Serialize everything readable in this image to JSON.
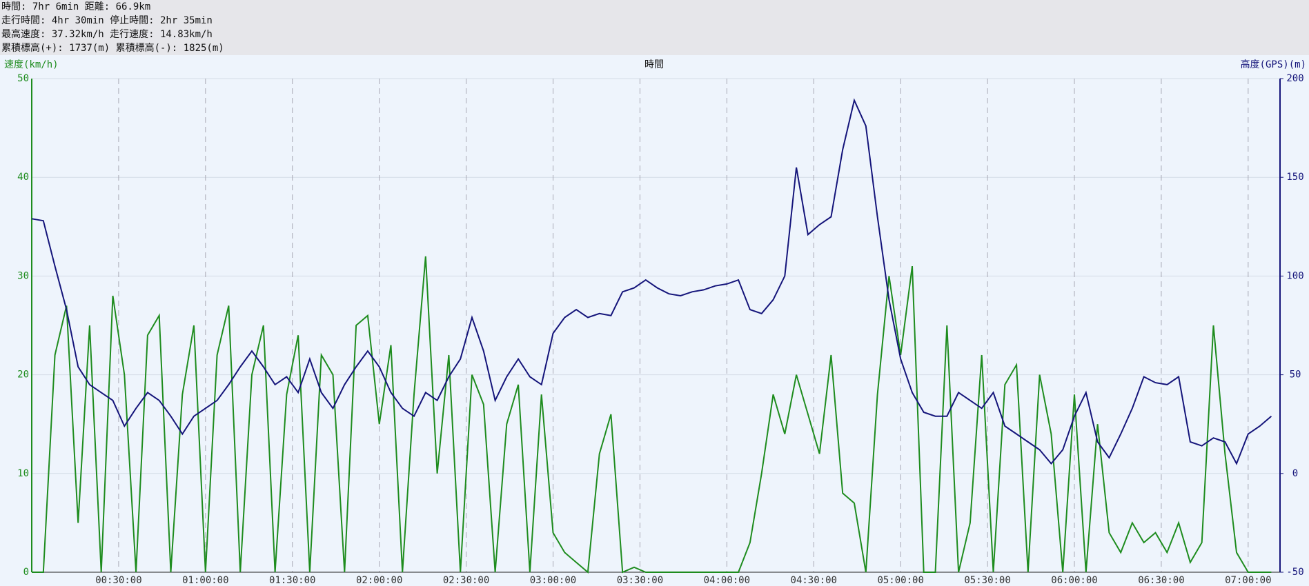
{
  "header": {
    "lines": [
      "時間: 7hr 6min 距離: 66.9km",
      "走行時間: 4hr 30min 停止時間: 2hr 35min",
      "最高速度: 37.32km/h 走行速度: 14.83km/h",
      "累積標高(+): 1737(m) 累積標高(-): 1825(m)"
    ]
  },
  "chart_data": {
    "type": "line",
    "xlabel": "時間",
    "ylabel": "速度(km/h)",
    "y2label": "高度(GPS)(m)",
    "x": [
      0,
      4,
      8,
      12,
      16,
      20,
      24,
      28,
      32,
      36,
      40,
      44,
      48,
      52,
      56,
      60,
      64,
      68,
      72,
      76,
      80,
      84,
      88,
      92,
      96,
      100,
      104,
      108,
      112,
      116,
      120,
      124,
      128,
      132,
      136,
      140,
      144,
      148,
      152,
      156,
      160,
      164,
      168,
      172,
      176,
      180,
      184,
      188,
      192,
      196,
      200,
      204,
      208,
      212,
      216,
      220,
      224,
      228,
      232,
      236,
      240,
      244,
      248,
      252,
      256,
      260,
      264,
      268,
      272,
      276,
      280,
      284,
      288,
      292,
      296,
      300,
      304,
      308,
      312,
      316,
      320,
      324,
      328,
      332,
      336,
      340,
      344,
      348,
      352,
      356,
      360,
      364,
      368,
      372,
      376,
      380,
      384,
      388,
      392,
      396,
      400,
      404,
      408,
      412,
      416,
      420,
      424,
      428
    ],
    "xlim": [
      0,
      431
    ],
    "xticks": [
      {
        "value": 30,
        "label": "00:30:00"
      },
      {
        "value": 60,
        "label": "01:00:00"
      },
      {
        "value": 90,
        "label": "01:30:00"
      },
      {
        "value": 120,
        "label": "02:00:00"
      },
      {
        "value": 150,
        "label": "02:30:00"
      },
      {
        "value": 180,
        "label": "03:00:00"
      },
      {
        "value": 210,
        "label": "03:30:00"
      },
      {
        "value": 240,
        "label": "04:00:00"
      },
      {
        "value": 270,
        "label": "04:30:00"
      },
      {
        "value": 300,
        "label": "05:00:00"
      },
      {
        "value": 330,
        "label": "05:30:00"
      },
      {
        "value": 360,
        "label": "06:00:00"
      },
      {
        "value": 390,
        "label": "06:30:00"
      },
      {
        "value": 420,
        "label": "07:00:00"
      }
    ],
    "ylim": [
      0,
      50
    ],
    "yticks": [
      0,
      10,
      20,
      30,
      40,
      50
    ],
    "y2lim": [
      -50,
      200
    ],
    "y2ticks": [
      -50,
      0,
      50,
      100,
      150,
      200
    ],
    "grid": true,
    "series": [
      {
        "name": "速度",
        "color": "#1e8c1e",
        "axis": "y",
        "values": [
          0,
          0,
          22,
          27,
          5,
          25,
          0,
          28,
          20,
          0,
          24,
          26,
          0,
          18,
          25,
          0,
          22,
          27,
          0,
          20,
          25,
          0,
          18,
          24,
          0,
          22,
          20,
          0,
          25,
          26,
          15,
          23,
          0,
          18,
          32,
          10,
          22,
          0,
          20,
          17,
          0,
          15,
          19,
          0,
          18,
          4,
          2,
          1,
          0,
          12,
          16,
          0,
          0.5,
          0,
          0,
          0,
          0,
          0,
          0,
          0,
          0,
          0,
          3,
          10,
          18,
          14,
          20,
          16,
          12,
          22,
          8,
          7,
          0,
          18,
          30,
          22,
          31,
          0,
          0,
          25,
          0,
          5,
          22,
          0,
          19,
          21,
          0,
          20,
          14,
          0,
          18,
          0,
          15,
          4,
          2,
          5,
          3,
          4,
          2,
          5,
          1,
          3,
          25,
          12,
          2,
          0,
          0,
          0
        ]
      },
      {
        "name": "高度",
        "color": "#14147a",
        "axis": "y2",
        "values": [
          129,
          128,
          105,
          83,
          54,
          45,
          41,
          37,
          24,
          33,
          41,
          37,
          29,
          20,
          29,
          33,
          37,
          45,
          54,
          62,
          54,
          45,
          49,
          41,
          58,
          41,
          33,
          45,
          54,
          62,
          54,
          41,
          33,
          29,
          41,
          37,
          49,
          58,
          79,
          62,
          37,
          49,
          58,
          49,
          45,
          71,
          79,
          83,
          79,
          81,
          80,
          92,
          94,
          98,
          94,
          91,
          90,
          92,
          93,
          95,
          96,
          98,
          83,
          81,
          88,
          100,
          155,
          121,
          126,
          130,
          164,
          189,
          176,
          130,
          88,
          58,
          41,
          31,
          29,
          29,
          41,
          37,
          33,
          41,
          24,
          20,
          16,
          12,
          5,
          12,
          29,
          41,
          16,
          8,
          20,
          33,
          49,
          46,
          45,
          49,
          16,
          14,
          18,
          16,
          5,
          20,
          24,
          29
        ]
      }
    ]
  }
}
